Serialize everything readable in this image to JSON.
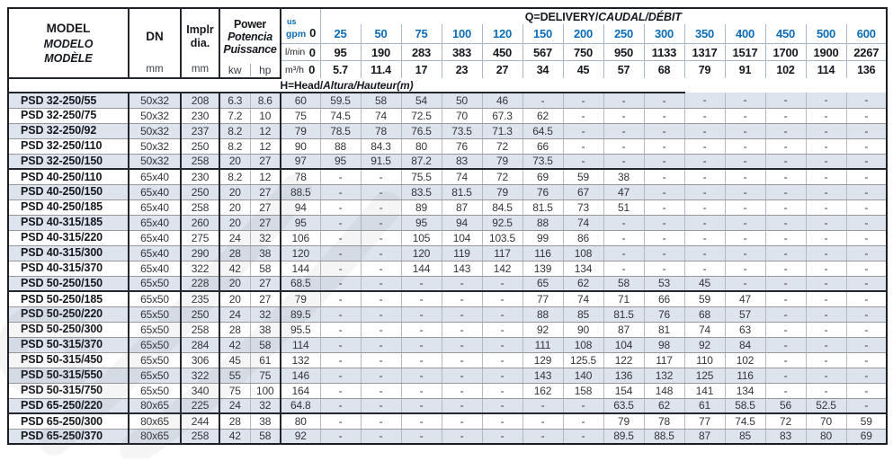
{
  "columns": {
    "model": {
      "l1": "MODEL",
      "l2": "MODELO",
      "l3": "MODÈLE"
    },
    "dn": {
      "label": "DN",
      "unit": "mm"
    },
    "impeller": {
      "l1": "Implr",
      "l2": "dia.",
      "unit": "mm"
    },
    "power": {
      "l1": "Power",
      "l2": "Potencia",
      "l3": "Puissance",
      "unit_kw": "kw",
      "unit_hp": "hp"
    },
    "delivery": {
      "q_title_plain": "Q=DELIVERY/",
      "q_title_italic": "CAUDAL/DÉBIT",
      "us": "us",
      "gpm_label": "gpm",
      "lmin_label": "l/min",
      "m3h_label": "m³/h",
      "zero_gpm": "0",
      "zero_lmin": "0",
      "zero_m3h": "0",
      "gpm": [
        "25",
        "50",
        "75",
        "100",
        "120",
        "150",
        "200",
        "250",
        "300",
        "350",
        "400",
        "450",
        "500",
        "600"
      ],
      "lmin": [
        "95",
        "190",
        "283",
        "383",
        "450",
        "567",
        "750",
        "950",
        "1133",
        "1317",
        "1517",
        "1700",
        "1900",
        "2267"
      ],
      "m3h": [
        "5.7",
        "11.4",
        "17",
        "23",
        "27",
        "34",
        "45",
        "57",
        "68",
        "79",
        "91",
        "102",
        "114",
        "136"
      ],
      "h_title_plain": "H=Head/",
      "h_title_italic": "Altura/Hauteur",
      "h_title_unit": "(m)"
    }
  },
  "colors": {
    "accent_blue": "#0b6cb7",
    "alt_row": "#dde4ee",
    "heavy_line": "#23262b"
  },
  "rows": [
    {
      "model": "PSD 32-250/55",
      "dn": "50x32",
      "impeller": "208",
      "kw": "6.3",
      "hp": "8.6",
      "group_end": false,
      "head": [
        "60",
        "59.5",
        "58",
        "54",
        "50",
        "46",
        "-",
        "-",
        "-",
        "-",
        "-",
        "-",
        "-",
        "-",
        "-"
      ]
    },
    {
      "model": "PSD 32-250/75",
      "dn": "50x32",
      "impeller": "230",
      "kw": "7.2",
      "hp": "10",
      "group_end": false,
      "head": [
        "75",
        "74.5",
        "74",
        "72.5",
        "70",
        "67.3",
        "62",
        "-",
        "-",
        "-",
        "-",
        "-",
        "-",
        "-",
        "-"
      ]
    },
    {
      "model": "PSD 32-250/92",
      "dn": "50x32",
      "impeller": "237",
      "kw": "8.2",
      "hp": "12",
      "group_end": false,
      "head": [
        "79",
        "78.5",
        "78",
        "76.5",
        "73.5",
        "71.3",
        "64.5",
        "-",
        "-",
        "-",
        "-",
        "-",
        "-",
        "-",
        "-"
      ]
    },
    {
      "model": "PSD 32-250/110",
      "dn": "50x32",
      "impeller": "250",
      "kw": "8.2",
      "hp": "12",
      "group_end": false,
      "head": [
        "90",
        "88",
        "84.3",
        "80",
        "76",
        "72",
        "66",
        "-",
        "-",
        "-",
        "-",
        "-",
        "-",
        "-",
        "-"
      ]
    },
    {
      "model": "PSD 32-250/150",
      "dn": "50x32",
      "impeller": "258",
      "kw": "20",
      "hp": "27",
      "group_end": true,
      "head": [
        "97",
        "95",
        "91.5",
        "87.2",
        "83",
        "79",
        "73.5",
        "-",
        "-",
        "-",
        "-",
        "-",
        "-",
        "-",
        "-"
      ]
    },
    {
      "model": "PSD 40-250/110",
      "dn": "65x40",
      "impeller": "230",
      "kw": "8.2",
      "hp": "12",
      "group_end": false,
      "head": [
        "78",
        "-",
        "-",
        "75.5",
        "74",
        "72",
        "69",
        "59",
        "38",
        "-",
        "-",
        "-",
        "-",
        "-",
        "-"
      ]
    },
    {
      "model": "PSD 40-250/150",
      "dn": "65x40",
      "impeller": "250",
      "kw": "20",
      "hp": "27",
      "group_end": false,
      "head": [
        "88.5",
        "-",
        "-",
        "83.5",
        "81.5",
        "79",
        "76",
        "67",
        "47",
        "-",
        "-",
        "-",
        "-",
        "-",
        "-"
      ]
    },
    {
      "model": "PSD 40-250/185",
      "dn": "65x40",
      "impeller": "258",
      "kw": "20",
      "hp": "27",
      "group_end": false,
      "head": [
        "94",
        "-",
        "-",
        "89",
        "87",
        "84.5",
        "81.5",
        "73",
        "51",
        "-",
        "-",
        "-",
        "-",
        "-",
        "-"
      ]
    },
    {
      "model": "PSD 40-315/185",
      "dn": "65x40",
      "impeller": "260",
      "kw": "20",
      "hp": "27",
      "group_end": false,
      "head": [
        "95",
        "-",
        "-",
        "95",
        "94",
        "92.5",
        "88",
        "74",
        "-",
        "-",
        "-",
        "-",
        "-",
        "-",
        "-"
      ]
    },
    {
      "model": "PSD 40-315/220",
      "dn": "65x40",
      "impeller": "275",
      "kw": "24",
      "hp": "32",
      "group_end": false,
      "head": [
        "106",
        "-",
        "-",
        "105",
        "104",
        "103.5",
        "99",
        "86",
        "-",
        "-",
        "-",
        "-",
        "-",
        "-",
        "-"
      ]
    },
    {
      "model": "PSD 40-315/300",
      "dn": "65x40",
      "impeller": "290",
      "kw": "28",
      "hp": "38",
      "group_end": false,
      "head": [
        "120",
        "-",
        "-",
        "120",
        "119",
        "117",
        "116",
        "108",
        "-",
        "-",
        "-",
        "-",
        "-",
        "-",
        "-"
      ]
    },
    {
      "model": "PSD 40-315/370",
      "dn": "65x40",
      "impeller": "322",
      "kw": "42",
      "hp": "58",
      "group_end": false,
      "head": [
        "144",
        "-",
        "-",
        "144",
        "143",
        "142",
        "139",
        "134",
        "-",
        "-",
        "-",
        "-",
        "-",
        "-",
        "-"
      ]
    },
    {
      "model": "PSD 50-250/150",
      "dn": "65x50",
      "impeller": "228",
      "kw": "20",
      "hp": "27",
      "group_end": true,
      "head": [
        "68.5",
        "-",
        "-",
        "-",
        "-",
        "-",
        "65",
        "62",
        "58",
        "53",
        "45",
        "-",
        "-",
        "-",
        "-"
      ]
    },
    {
      "model": "PSD 50-250/185",
      "dn": "65x50",
      "impeller": "235",
      "kw": "20",
      "hp": "27",
      "group_end": false,
      "head": [
        "79",
        "-",
        "-",
        "-",
        "-",
        "-",
        "77",
        "74",
        "71",
        "66",
        "59",
        "47",
        "-",
        "-",
        "-"
      ]
    },
    {
      "model": "PSD 50-250/220",
      "dn": "65x50",
      "impeller": "250",
      "kw": "24",
      "hp": "32",
      "group_end": false,
      "head": [
        "89.5",
        "-",
        "-",
        "-",
        "-",
        "-",
        "88",
        "85",
        "81.5",
        "76",
        "68",
        "57",
        "-",
        "-",
        "-"
      ]
    },
    {
      "model": "PSD 50-250/300",
      "dn": "65x50",
      "impeller": "258",
      "kw": "28",
      "hp": "38",
      "group_end": false,
      "head": [
        "95.5",
        "-",
        "-",
        "-",
        "-",
        "-",
        "92",
        "90",
        "87",
        "81",
        "74",
        "63",
        "-",
        "-",
        "-"
      ]
    },
    {
      "model": "PSD 50-315/370",
      "dn": "65x50",
      "impeller": "284",
      "kw": "42",
      "hp": "58",
      "group_end": false,
      "head": [
        "114",
        "-",
        "-",
        "-",
        "-",
        "-",
        "111",
        "108",
        "104",
        "98",
        "92",
        "84",
        "-",
        "-",
        "-"
      ]
    },
    {
      "model": "PSD 50-315/450",
      "dn": "65x50",
      "impeller": "306",
      "kw": "45",
      "hp": "61",
      "group_end": false,
      "head": [
        "132",
        "-",
        "-",
        "-",
        "-",
        "-",
        "129",
        "125.5",
        "122",
        "117",
        "110",
        "102",
        "-",
        "-",
        "-"
      ]
    },
    {
      "model": "PSD 50-315/550",
      "dn": "65x50",
      "impeller": "322",
      "kw": "55",
      "hp": "75",
      "group_end": false,
      "head": [
        "146",
        "-",
        "-",
        "-",
        "-",
        "-",
        "143",
        "140",
        "136",
        "132",
        "125",
        "116",
        "-",
        "-",
        "-"
      ]
    },
    {
      "model": "PSD 50-315/750",
      "dn": "65x50",
      "impeller": "340",
      "kw": "75",
      "hp": "100",
      "group_end": false,
      "head": [
        "164",
        "-",
        "-",
        "-",
        "-",
        "-",
        "162",
        "158",
        "154",
        "148",
        "141",
        "134",
        "-",
        "-",
        "-"
      ]
    },
    {
      "model": "PSD 65-250/220",
      "dn": "80x65",
      "impeller": "225",
      "kw": "24",
      "hp": "32",
      "group_end": true,
      "head": [
        "64.8",
        "-",
        "-",
        "-",
        "-",
        "-",
        "-",
        "-",
        "63.5",
        "62",
        "61",
        "58.5",
        "56",
        "52.5",
        "-"
      ]
    },
    {
      "model": "PSD 65-250/300",
      "dn": "80x65",
      "impeller": "244",
      "kw": "28",
      "hp": "38",
      "group_end": false,
      "head": [
        "80",
        "-",
        "-",
        "-",
        "-",
        "-",
        "-",
        "-",
        "79",
        "78",
        "77",
        "74.5",
        "72",
        "70",
        "59"
      ]
    },
    {
      "model": "PSD 65-250/370",
      "dn": "80x65",
      "impeller": "258",
      "kw": "42",
      "hp": "58",
      "group_end": false,
      "head": [
        "92",
        "-",
        "-",
        "-",
        "-",
        "-",
        "-",
        "-",
        "89.5",
        "88.5",
        "87",
        "85",
        "83",
        "80",
        "69"
      ]
    }
  ]
}
